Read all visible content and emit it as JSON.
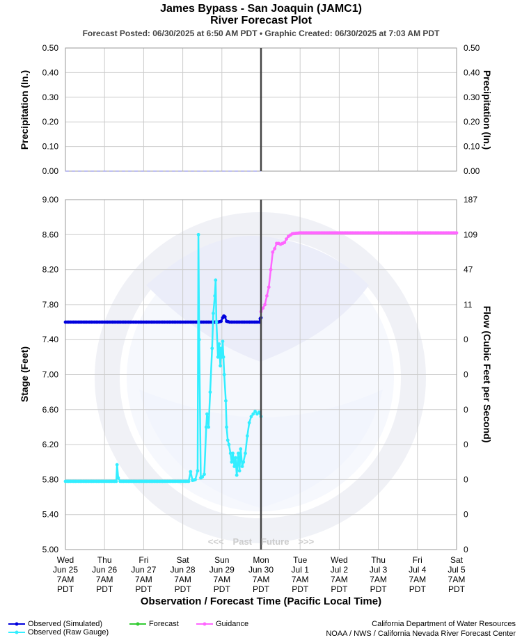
{
  "header": {
    "title_line1": "James Bypass - San Joaquin (JAMC1)",
    "title_line2": "River Forecast Plot",
    "subtitle": "Forecast Posted: 06/30/2025 at 6:50 AM PDT  •  Graphic Created: 06/30/2025 at 7:03 AM PDT"
  },
  "legend": {
    "observed_simulated": "Observed (Simulated)",
    "observed_raw": "Observed (Raw Gauge)",
    "forecast": "Forecast",
    "guidance": "Guidance"
  },
  "credits": {
    "line1": "California Department of Water Resources",
    "line2": "NOAA / NWS / California Nevada River Forecast Center"
  },
  "colors": {
    "observed_simulated": "#0000dd",
    "observed_raw": "#33eeff",
    "forecast": "#33cc33",
    "guidance": "#ff66ff",
    "now_line": "#444444",
    "grid": "#cccccc"
  },
  "chart_data": [
    {
      "type": "line",
      "panel": "precipitation",
      "ylabel_left": "Precipitation (In.)",
      "ylabel_right": "Precipitation (In.)",
      "ylim": [
        0,
        0.5
      ],
      "yticks": [
        "0.00",
        "0.10",
        "0.20",
        "0.30",
        "0.40",
        "0.50"
      ],
      "yticks_right": [
        "0.00",
        "0.10",
        "0.20",
        "0.30",
        "0.40",
        "0.50"
      ],
      "series": [
        {
          "key": "precip_observed",
          "x_start": 0,
          "x_end": 5,
          "values": [
            0,
            0
          ]
        }
      ]
    },
    {
      "type": "line",
      "panel": "stage",
      "ylabel_left": "Stage (Feet)",
      "ylabel_right": "Flow (Cubic Feet per Second)",
      "xlabel": "Observation / Forecast Time (Pacific Local Time)",
      "ylim": [
        5.0,
        9.0
      ],
      "yticks": [
        "5.00",
        "5.40",
        "5.80",
        "6.20",
        "6.60",
        "7.00",
        "7.40",
        "7.80",
        "8.20",
        "8.60",
        "9.00"
      ],
      "yticks_right": [
        "0",
        "0",
        "0",
        "0",
        "0",
        "0",
        "0",
        "11",
        "47",
        "109",
        "187"
      ],
      "xlim": [
        0,
        10
      ],
      "x_unit": "days since Wed Jun 25 7AM PDT",
      "x_ticks": [
        {
          "day": "Wed",
          "date": "Jun 25",
          "hour": "7AM",
          "tz": "PDT"
        },
        {
          "day": "Thu",
          "date": "Jun 26",
          "hour": "7AM",
          "tz": "PDT"
        },
        {
          "day": "Fri",
          "date": "Jun 27",
          "hour": "7AM",
          "tz": "PDT"
        },
        {
          "day": "Sat",
          "date": "Jun 28",
          "hour": "7AM",
          "tz": "PDT"
        },
        {
          "day": "Sun",
          "date": "Jun 29",
          "hour": "7AM",
          "tz": "PDT"
        },
        {
          "day": "Mon",
          "date": "Jun 30",
          "hour": "7AM",
          "tz": "PDT"
        },
        {
          "day": "Tue",
          "date": "Jul 1",
          "hour": "7AM",
          "tz": "PDT"
        },
        {
          "day": "Wed",
          "date": "Jul 2",
          "hour": "7AM",
          "tz": "PDT"
        },
        {
          "day": "Thu",
          "date": "Jul 3",
          "hour": "7AM",
          "tz": "PDT"
        },
        {
          "day": "Fri",
          "date": "Jul 4",
          "hour": "7AM",
          "tz": "PDT"
        },
        {
          "day": "Sat",
          "date": "Jul 5",
          "hour": "7AM",
          "tz": "PDT"
        }
      ],
      "now_x": 5.0,
      "annotation": "<<< Past    Future >>>",
      "series": [
        {
          "key": "observed_simulated",
          "name": "Observed (Simulated)",
          "points": [
            [
              0,
              7.6
            ],
            [
              3.9,
              7.6
            ],
            [
              3.98,
              7.61
            ],
            [
              4.02,
              7.65
            ],
            [
              4.05,
              7.67
            ],
            [
              4.08,
              7.66
            ],
            [
              4.12,
              7.61
            ],
            [
              4.2,
              7.6
            ],
            [
              4.96,
              7.6
            ],
            [
              4.98,
              7.64
            ],
            [
              5.0,
              7.65
            ]
          ]
        },
        {
          "key": "observed_raw",
          "name": "Observed (Raw Gauge)",
          "points": [
            [
              0,
              5.78
            ],
            [
              1.3,
              5.78
            ],
            [
              1.32,
              5.97
            ],
            [
              1.35,
              5.82
            ],
            [
              1.4,
              5.78
            ],
            [
              3.15,
              5.78
            ],
            [
              3.2,
              5.89
            ],
            [
              3.25,
              5.79
            ],
            [
              3.32,
              5.8
            ],
            [
              3.38,
              5.9
            ],
            [
              3.4,
              8.6
            ],
            [
              3.42,
              7.4
            ],
            [
              3.46,
              5.82
            ],
            [
              3.5,
              5.83
            ],
            [
              3.55,
              5.86
            ],
            [
              3.6,
              6.4
            ],
            [
              3.62,
              6.55
            ],
            [
              3.66,
              6.4
            ],
            [
              3.7,
              6.8
            ],
            [
              3.75,
              7.3
            ],
            [
              3.78,
              7.7
            ],
            [
              3.82,
              7.9
            ],
            [
              3.84,
              8.08
            ],
            [
              3.86,
              7.6
            ],
            [
              3.9,
              7.2
            ],
            [
              3.93,
              7.35
            ],
            [
              3.96,
              7.1
            ],
            [
              3.98,
              7.3
            ],
            [
              4.0,
              7.2
            ],
            [
              4.02,
              7.38
            ],
            [
              4.04,
              7.2
            ],
            [
              4.06,
              7.0
            ],
            [
              4.1,
              6.7
            ],
            [
              4.12,
              6.4
            ],
            [
              4.15,
              6.25
            ],
            [
              4.18,
              6.2
            ],
            [
              4.22,
              6.1
            ],
            [
              4.25,
              6.0
            ],
            [
              4.28,
              6.1
            ],
            [
              4.32,
              5.95
            ],
            [
              4.35,
              6.05
            ],
            [
              4.38,
              5.85
            ],
            [
              4.42,
              6.1
            ],
            [
              4.45,
              5.9
            ],
            [
              4.48,
              6.15
            ],
            [
              4.52,
              5.95
            ],
            [
              4.55,
              6.0
            ],
            [
              4.6,
              6.1
            ],
            [
              4.65,
              6.3
            ],
            [
              4.7,
              6.45
            ],
            [
              4.75,
              6.52
            ],
            [
              4.8,
              6.55
            ],
            [
              4.85,
              6.58
            ],
            [
              4.9,
              6.55
            ],
            [
              4.95,
              6.57
            ],
            [
              5.0,
              6.52
            ]
          ]
        },
        {
          "key": "guidance",
          "name": "Guidance",
          "points": [
            [
              5.0,
              7.72
            ],
            [
              5.05,
              7.76
            ],
            [
              5.1,
              7.8
            ],
            [
              5.15,
              7.9
            ],
            [
              5.2,
              8.0
            ],
            [
              5.25,
              8.2
            ],
            [
              5.3,
              8.4
            ],
            [
              5.35,
              8.44
            ],
            [
              5.4,
              8.5
            ],
            [
              5.45,
              8.5
            ],
            [
              5.5,
              8.49
            ],
            [
              5.55,
              8.5
            ],
            [
              5.6,
              8.51
            ],
            [
              5.65,
              8.55
            ],
            [
              5.7,
              8.58
            ],
            [
              5.8,
              8.61
            ],
            [
              6.0,
              8.62
            ],
            [
              10.0,
              8.62
            ]
          ]
        }
      ]
    }
  ]
}
